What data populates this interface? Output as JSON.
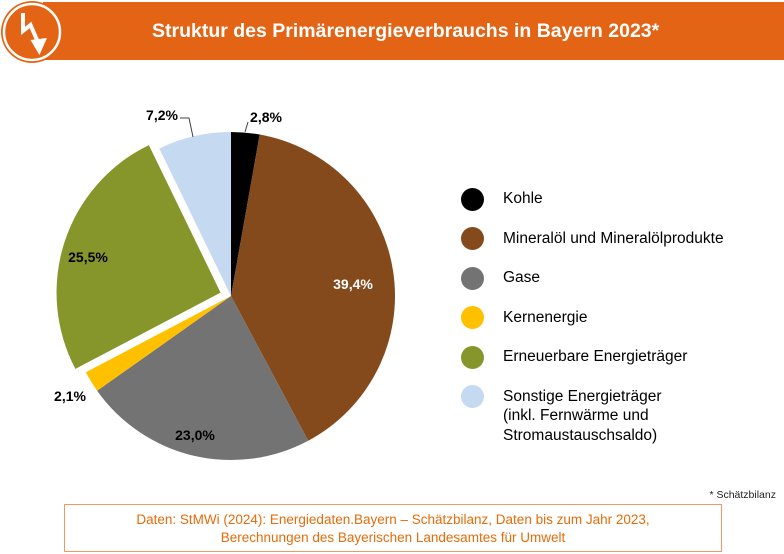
{
  "header": {
    "title": "Struktur des Primärenergieverbrauchs in Bayern 2023*",
    "icon": "lightning-arrow-icon",
    "accent_color": "#E46415"
  },
  "chart_data": {
    "type": "pie",
    "title": "Struktur des Primärenergieverbrauchs in Bayern 2023*",
    "unit": "%",
    "exploded": "Erneuerbare Energieträger",
    "legend_position": "right",
    "slices": [
      {
        "label": "Kohle",
        "value": 2.8,
        "display": "2,8%",
        "color": "#000000"
      },
      {
        "label": "Mineralöl und Mineralölprodukte",
        "value": 39.4,
        "display": "39,4%",
        "color": "#854A1B"
      },
      {
        "label": "Gase",
        "value": 23.0,
        "display": "23,0%",
        "color": "#737373"
      },
      {
        "label": "Kernenergie",
        "value": 2.1,
        "display": "2,1%",
        "color": "#FFC000"
      },
      {
        "label": "Erneuerbare Energieträger",
        "value": 25.5,
        "display": "25,5%",
        "color": "#86962B"
      },
      {
        "label": "Sonstige Energieträger\n(inkl. Fernwärme und\nStromaustauschsaldo)",
        "value": 7.2,
        "display": "7,2%",
        "color": "#C5D9F1"
      }
    ]
  },
  "footnote": "* Schätzbilanz",
  "source": {
    "lines": [
      "Daten: StMWi (2024): Energiedaten.Bayern – Schätzbilanz, Daten bis zum Jahr 2023,",
      "Berechnungen des Bayerischen Landesamtes für Umwelt"
    ],
    "text_color": "#E46C0A"
  }
}
